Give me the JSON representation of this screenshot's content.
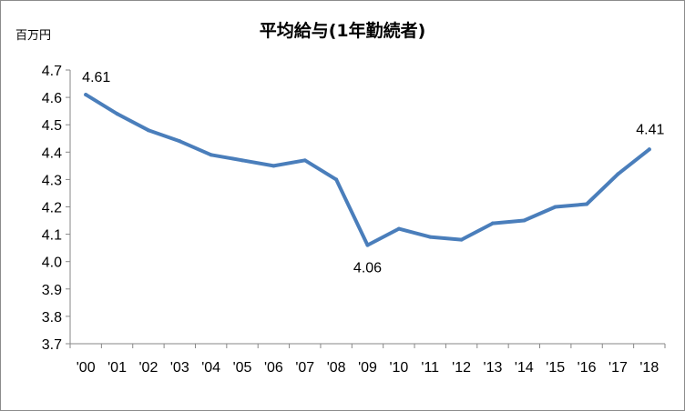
{
  "chart_data": {
    "type": "line",
    "title": "平均給与(1年勤続者)",
    "ylabel": "百万円",
    "xlabel": "",
    "categories": [
      "'00",
      "'01",
      "'02",
      "'03",
      "'04",
      "'05",
      "'06",
      "'07",
      "'08",
      "'09",
      "'10",
      "'11",
      "'12",
      "'13",
      "'14",
      "'15",
      "'16",
      "'17",
      "'18"
    ],
    "series": [
      {
        "values": [
          4.61,
          4.54,
          4.48,
          4.44,
          4.39,
          4.37,
          4.35,
          4.37,
          4.3,
          4.06,
          4.12,
          4.09,
          4.08,
          4.14,
          4.15,
          4.2,
          4.21,
          4.32,
          4.41
        ]
      }
    ],
    "ylim": [
      3.7,
      4.7
    ],
    "yticks": [
      "3.7",
      "3.8",
      "3.9",
      "4.0",
      "4.1",
      "4.2",
      "4.3",
      "4.4",
      "4.5",
      "4.6",
      "4.7"
    ],
    "data_labels": [
      {
        "index": 0,
        "text": "4.61"
      },
      {
        "index": 9,
        "text": "4.06"
      },
      {
        "index": 18,
        "text": "4.41"
      }
    ],
    "line_color": "#4a7ebb",
    "grid": false,
    "legend": "none"
  }
}
